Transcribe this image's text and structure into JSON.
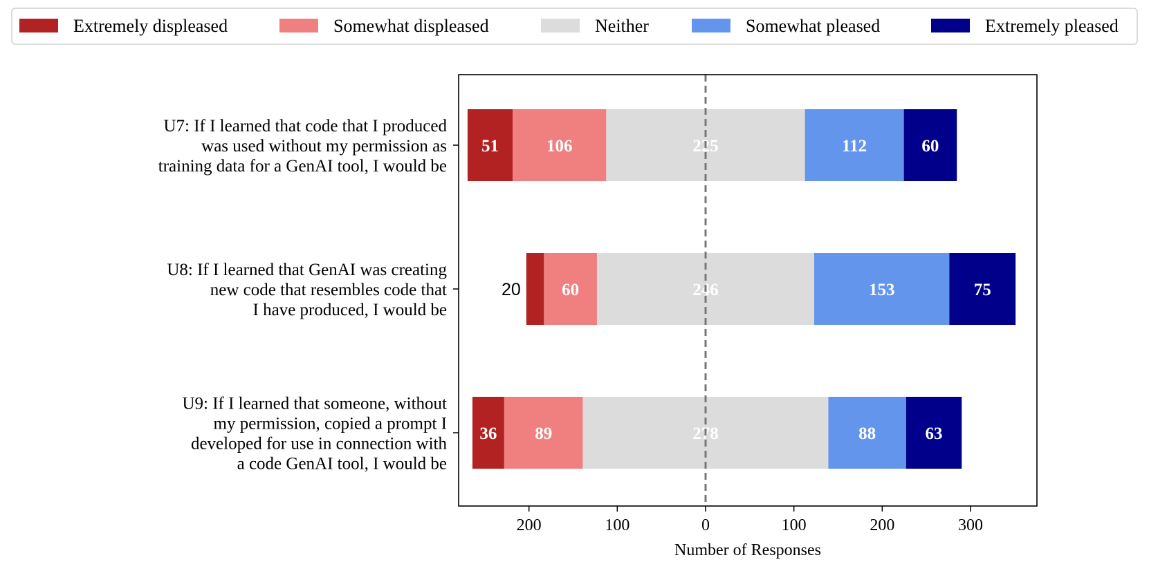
{
  "chart_data": {
    "type": "bar",
    "orientation": "horizontal-diverging",
    "title": "",
    "xlabel": "Number of Responses",
    "ylabel": "",
    "xlim": [
      -280,
      375
    ],
    "x_ticks": [
      -200,
      -100,
      0,
      100,
      200,
      300
    ],
    "x_tick_labels": [
      "200",
      "100",
      "0",
      "100",
      "200",
      "300"
    ],
    "grid": false,
    "center_line": "dashed at 0",
    "legend_placement": "top",
    "legend": [
      {
        "key": "extremely_displeased",
        "label": "Extremely displeased",
        "color": "#b22222"
      },
      {
        "key": "somewhat_displeased",
        "label": "Somewhat displeased",
        "color": "#f08080"
      },
      {
        "key": "neither",
        "label": "Neither",
        "color": "#dcdcdc"
      },
      {
        "key": "somewhat_pleased",
        "label": "Somewhat pleased",
        "color": "#6495ed"
      },
      {
        "key": "extremely_pleased",
        "label": "Extremely pleased",
        "color": "#00008b"
      }
    ],
    "categories": [
      {
        "id": "U7",
        "label_lines": [
          "U7: If I learned that code that I produced",
          "was used without my permission as",
          "training data for a GenAI tool, I would be"
        ],
        "values": {
          "extremely_displeased": 51,
          "somewhat_displeased": 106,
          "neither": 225,
          "somewhat_pleased": 112,
          "extremely_pleased": 60
        },
        "display": {
          "extremely_displeased": "51",
          "somewhat_displeased": "106",
          "neither": "225",
          "somewhat_pleased": "112",
          "extremely_pleased": "60"
        }
      },
      {
        "id": "U8",
        "label_lines": [
          "U8: If I learned that GenAI was creating",
          "new code that resembles code that",
          "I have produced, I would be"
        ],
        "values": {
          "extremely_displeased": 20,
          "somewhat_displeased": 60,
          "neither": 246,
          "somewhat_pleased": 153,
          "extremely_pleased": 75
        },
        "display": {
          "extremely_displeased": "20",
          "somewhat_displeased": "60",
          "neither": "246",
          "somewhat_pleased": "153",
          "extremely_pleased": "75"
        }
      },
      {
        "id": "U9",
        "label_lines": [
          "U9: If I learned that someone, without",
          "my permission, copied a prompt I",
          "developed for use in connection with",
          "a code GenAI tool, I would be"
        ],
        "values": {
          "extremely_displeased": 36,
          "somewhat_displeased": 89,
          "neither": 278,
          "somewhat_pleased": 88,
          "extremely_pleased": 63
        },
        "display": {
          "extremely_displeased": "36",
          "somewhat_displeased": "89",
          "neither": "278",
          "somewhat_pleased": "88",
          "extremely_pleased": "63"
        }
      }
    ]
  }
}
